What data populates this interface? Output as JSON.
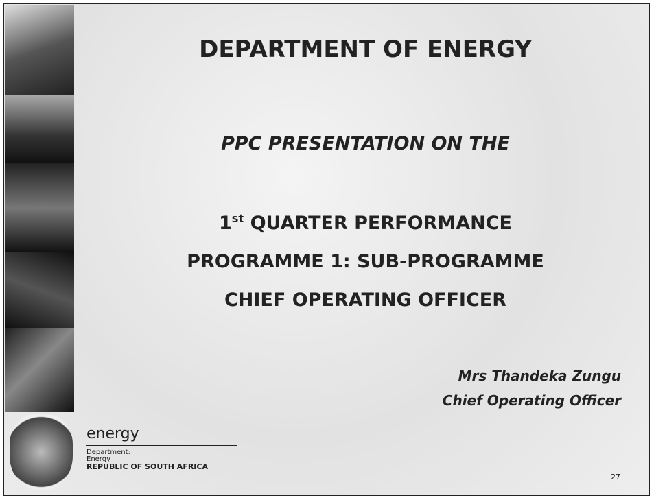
{
  "slide": {
    "title": "DEPARTMENT OF ENERGY",
    "subtitle": "PPC PRESENTATION ON THE",
    "heading_line1": {
      "number": "1",
      "suffix": "st",
      "text": " QUARTER PERFORMANCE"
    },
    "heading_line2": "PROGRAMME 1: SUB-PROGRAMME",
    "heading_line3": "CHIEF OPERATING OFFICER",
    "presenter_name": "Mrs Thandeka Zungu",
    "presenter_role": "Chief Operating Officer",
    "logo": {
      "wordmark": "energy",
      "line1": "Department:",
      "line2": "Energy",
      "line3": "REPUBLIC OF SOUTH AFRICA"
    },
    "page_number": "27"
  }
}
